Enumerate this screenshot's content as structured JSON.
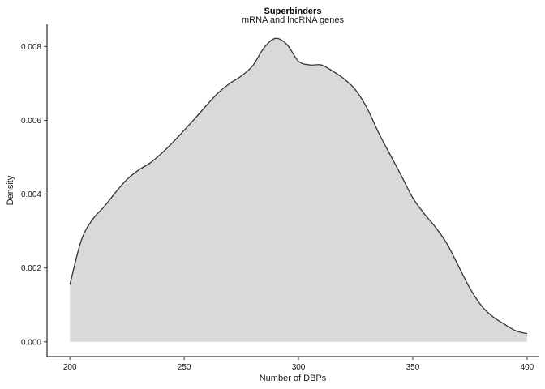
{
  "chart_data": {
    "type": "area",
    "title": "Superbinders",
    "subtitle": "mRNA and lncRNA genes",
    "xlabel": "Number of DBPs",
    "ylabel": "Density",
    "xlim": [
      190,
      405
    ],
    "ylim": [
      -0.0004,
      0.0086
    ],
    "x_ticks": [
      200,
      250,
      300,
      350,
      400
    ],
    "y_ticks": [
      0.0,
      0.002,
      0.004,
      0.006,
      0.008
    ],
    "x_tick_labels": [
      "200",
      "250",
      "300",
      "350",
      "400"
    ],
    "y_tick_labels": [
      "0.000",
      "0.002",
      "0.004",
      "0.006",
      "0.008"
    ],
    "grid": false,
    "legend": "none",
    "fill_color": "#d9d9d9",
    "line_color": "#333333",
    "x": [
      200,
      205,
      210,
      215,
      220,
      225,
      230,
      235,
      240,
      245,
      250,
      255,
      260,
      265,
      270,
      275,
      280,
      285,
      290,
      295,
      300,
      305,
      310,
      315,
      320,
      325,
      330,
      335,
      340,
      345,
      350,
      355,
      360,
      365,
      370,
      375,
      380,
      385,
      390,
      395,
      400
    ],
    "y": [
      0.00155,
      0.00275,
      0.00332,
      0.00366,
      0.00405,
      0.0044,
      0.00465,
      0.00484,
      0.0051,
      0.0054,
      0.00573,
      0.00607,
      0.00642,
      0.00675,
      0.007,
      0.0072,
      0.00748,
      0.00797,
      0.00822,
      0.00805,
      0.0076,
      0.0075,
      0.0075,
      0.00733,
      0.00712,
      0.00682,
      0.00633,
      0.00567,
      0.00508,
      0.0045,
      0.0039,
      0.00347,
      0.0031,
      0.00265,
      0.00205,
      0.00145,
      0.00098,
      0.00068,
      0.00048,
      0.0003,
      0.00022
    ]
  }
}
